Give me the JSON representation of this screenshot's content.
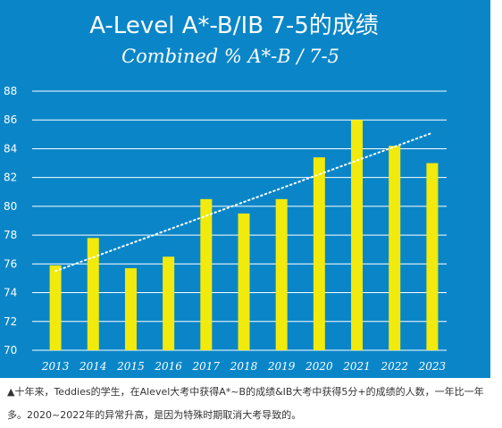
{
  "colors": {
    "panel": "#0a86c8",
    "bar": "#f2ea0c",
    "text": "#ffffff",
    "trend": "#ffffff"
  },
  "caption": "▲十年来，Teddies的学生，在Alevel大考中获得A*~B的成绩&IB大考中获得5分+的成绩的人数，一年比一年多。2020~2022年的异常升高，是因为特殊时期取消大考导致的。",
  "chart_data": {
    "type": "bar",
    "title": "A-Level A*-B/IB 7-5的成绩",
    "subtitle": "Combined % A*-B / 7-5",
    "xlabel": "",
    "ylabel": "",
    "categories": [
      "2013",
      "2014",
      "2015",
      "2016",
      "2017",
      "2018",
      "2019",
      "2020",
      "2021",
      "2022",
      "2023"
    ],
    "values": [
      75.9,
      77.8,
      75.7,
      76.5,
      80.5,
      79.5,
      80.5,
      83.4,
      86.0,
      84.2,
      83.0
    ],
    "ylim": [
      70,
      88
    ],
    "yticks": [
      70,
      72,
      74,
      76,
      78,
      80,
      82,
      84,
      86,
      88
    ],
    "trendline": {
      "style": "dotted",
      "from": 75.5,
      "to": 85.1
    },
    "grid": true,
    "legend": "none"
  }
}
